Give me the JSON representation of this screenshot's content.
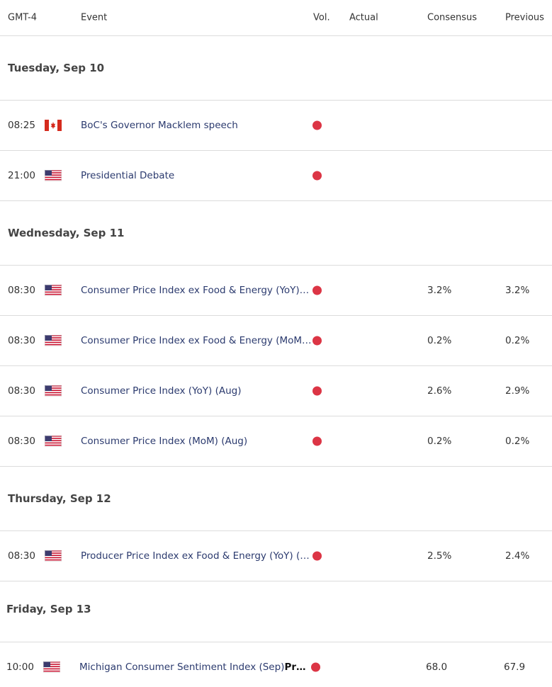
{
  "header": {
    "time": "GMT-4",
    "event": "Event",
    "volatility": "Vol.",
    "actual": "Actual",
    "consensus": "Consensus",
    "previous": "Previous"
  },
  "days": [
    {
      "date": "Tuesday, Sep 10",
      "events": [
        {
          "time": "08:25",
          "event": "BoC's Governor Macklem speech"
        },
        {
          "time": "21:00",
          "event": "Presidential Debate"
        }
      ]
    },
    {
      "date": "Wednesday, Sep 11",
      "events": [
        {
          "time": "08:30",
          "event": "Consumer Price Index ex Food & Energy (YoY)…",
          "consensus": "3.2%",
          "previous": "3.2%"
        },
        {
          "time": "08:30",
          "event": "Consumer Price Index ex Food & Energy (MoM…",
          "consensus": "0.2%",
          "previous": "0.2%"
        },
        {
          "time": "08:30",
          "event": "Consumer Price Index (YoY) (Aug)",
          "consensus": "2.6%",
          "previous": "2.9%"
        },
        {
          "time": "08:30",
          "event": "Consumer Price Index (MoM) (Aug)",
          "consensus": "0.2%",
          "previous": "0.2%"
        }
      ]
    },
    {
      "date": "Thursday, Sep 12",
      "events": [
        {
          "time": "08:30",
          "event": "Producer Price Index ex Food & Energy (YoY) (…",
          "consensus": "2.5%",
          "previous": "2.4%"
        }
      ]
    },
    {
      "date": "Friday, Sep 13",
      "events": [
        {
          "time": "10:00",
          "event": "Michigan Consumer Sentiment Index (Sep)",
          "event_suffix": "Pr…",
          "consensus": "68.0",
          "previous": "67.9"
        }
      ]
    }
  ]
}
